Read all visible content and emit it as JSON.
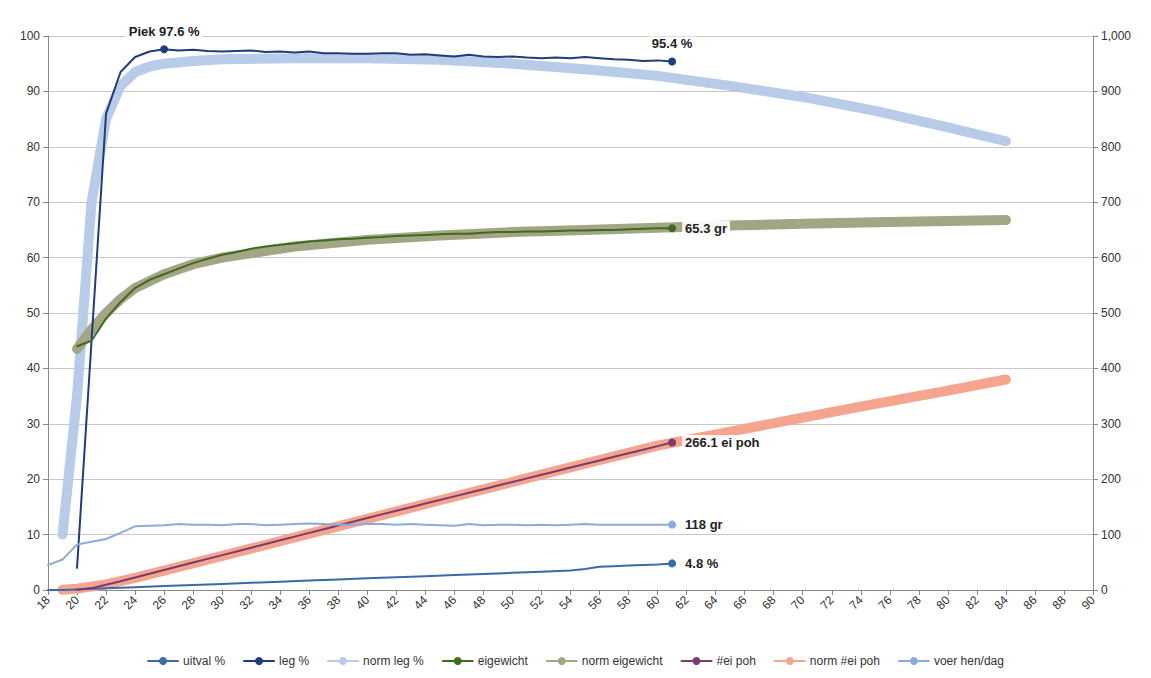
{
  "chart_data": {
    "type": "line",
    "xlim": [
      18,
      90
    ],
    "xticks": [
      18,
      20,
      22,
      24,
      26,
      28,
      30,
      32,
      34,
      36,
      38,
      40,
      42,
      44,
      46,
      48,
      50,
      52,
      54,
      56,
      58,
      60,
      62,
      64,
      66,
      68,
      70,
      72,
      74,
      76,
      78,
      80,
      82,
      84,
      86,
      88,
      90
    ],
    "ylim": [
      0,
      100
    ],
    "yticks": [
      0,
      10,
      20,
      30,
      40,
      50,
      60,
      70,
      80,
      90,
      100
    ],
    "y2lim": [
      0,
      1000
    ],
    "y2ticks": [
      0,
      100,
      200,
      300,
      400,
      500,
      600,
      700,
      800,
      900,
      1000
    ],
    "grid": true,
    "legend": "bottom",
    "series": [
      {
        "name": "uitval %",
        "color": "#3b6aa8",
        "line_style": "solid",
        "x": [
          18,
          19,
          20,
          22,
          24,
          26,
          28,
          30,
          32,
          34,
          36,
          38,
          40,
          42,
          44,
          46,
          48,
          50,
          52,
          54,
          55,
          56,
          57,
          58,
          59,
          60,
          61
        ],
        "values": [
          0,
          0,
          0.1,
          0.3,
          0.5,
          0.7,
          0.9,
          1.1,
          1.3,
          1.5,
          1.7,
          1.9,
          2.1,
          2.3,
          2.5,
          2.7,
          2.9,
          3.1,
          3.3,
          3.5,
          3.8,
          4.2,
          4.3,
          4.4,
          4.5,
          4.6,
          4.8
        ]
      },
      {
        "name": "leg %",
        "color": "#1f3d7a",
        "line_style": "solid",
        "x": [
          20,
          21,
          22,
          23,
          24,
          25,
          26,
          27,
          28,
          29,
          30,
          31,
          32,
          33,
          34,
          35,
          36,
          37,
          38,
          39,
          40,
          41,
          42,
          43,
          44,
          45,
          46,
          47,
          48,
          49,
          50,
          51,
          52,
          53,
          54,
          55,
          56,
          57,
          58,
          59,
          60,
          61
        ],
        "values": [
          4,
          45,
          86,
          93.5,
          96.2,
          97.2,
          97.6,
          97.4,
          97.5,
          97.3,
          97.2,
          97.3,
          97.4,
          97.1,
          97.2,
          97.0,
          97.2,
          96.9,
          96.9,
          96.8,
          96.8,
          96.9,
          96.9,
          96.6,
          96.7,
          96.5,
          96.3,
          96.6,
          96.3,
          96.2,
          96.3,
          96.1,
          96.0,
          96.1,
          96.0,
          96.2,
          96.0,
          95.8,
          95.7,
          95.5,
          95.6,
          95.4
        ]
      },
      {
        "name": "norm leg %",
        "color": "#b8cbe8",
        "line_style": "thick",
        "x": [
          19,
          20,
          21,
          22,
          23,
          24,
          25,
          26,
          28,
          30,
          35,
          40,
          45,
          50,
          55,
          60,
          65,
          70,
          75,
          80,
          84
        ],
        "values": [
          10,
          35,
          70,
          85,
          91,
          93.5,
          94.5,
          95,
          95.5,
          95.8,
          96,
          96,
          95.7,
          95,
          94,
          92.8,
          91,
          89,
          86.5,
          83.5,
          81
        ]
      },
      {
        "name": "eigewicht",
        "color": "#3d6b1f",
        "line_style": "solid",
        "x": [
          20,
          21,
          22,
          23,
          24,
          25,
          26,
          27,
          28,
          29,
          30,
          31,
          32,
          33,
          34,
          35,
          36,
          37,
          38,
          39,
          40,
          41,
          42,
          43,
          44,
          45,
          46,
          47,
          48,
          49,
          50,
          51,
          52,
          53,
          54,
          55,
          56,
          57,
          58,
          59,
          60,
          61
        ],
        "values": [
          44,
          45,
          49,
          52,
          54.5,
          56,
          57,
          58,
          59,
          59.8,
          60.5,
          61,
          61.6,
          62,
          62.3,
          62.6,
          62.9,
          63.1,
          63.3,
          63.4,
          63.6,
          63.7,
          63.9,
          64,
          64.1,
          64.2,
          64.3,
          64.3,
          64.5,
          64.6,
          64.6,
          64.7,
          64.7,
          64.8,
          64.9,
          64.9,
          65,
          65,
          65.1,
          65.2,
          65.3,
          65.3
        ]
      },
      {
        "name": "norm eigewicht",
        "color": "#a3a585",
        "line_style": "thick",
        "x": [
          20,
          21,
          22,
          23,
          24,
          26,
          28,
          30,
          35,
          40,
          45,
          50,
          55,
          60,
          65,
          70,
          75,
          80,
          84
        ],
        "values": [
          43.5,
          47,
          50,
          52.5,
          54.5,
          57,
          58.8,
          60,
          62,
          63.2,
          64,
          64.6,
          65,
          65.4,
          65.8,
          66.1,
          66.4,
          66.6,
          66.8
        ]
      },
      {
        "name": "#ei poh",
        "color": "#7a3b6e",
        "line_style": "solid",
        "axis": "y2",
        "x": [
          20,
          21,
          22,
          23,
          24,
          25,
          26,
          27,
          28,
          29,
          30,
          31,
          32,
          33,
          34,
          35,
          36,
          37,
          38,
          39,
          40,
          41,
          42,
          43,
          44,
          45,
          46,
          47,
          48,
          49,
          50,
          51,
          52,
          53,
          54,
          55,
          56,
          57,
          58,
          59,
          60,
          61
        ],
        "values": [
          0.3,
          3.4,
          9.3,
          15.8,
          22.5,
          29.3,
          36.1,
          42.8,
          49.5,
          56.2,
          62.9,
          69.6,
          76.3,
          83.0,
          89.7,
          96.4,
          103.1,
          109.8,
          116.5,
          123.2,
          129.9,
          136.5,
          143.0,
          149.5,
          156.0,
          162.5,
          169.0,
          175.5,
          182.0,
          188.5,
          195.0,
          201.5,
          208.0,
          214.5,
          221.0,
          227.5,
          233.9,
          240.4,
          246.8,
          253.3,
          259.7,
          266.1
        ]
      },
      {
        "name": "norm #ei poh",
        "color": "#f5a58f",
        "line_style": "thick",
        "axis": "y2",
        "x": [
          19,
          20,
          22,
          24,
          26,
          30,
          35,
          40,
          45,
          50,
          55,
          60,
          65,
          70,
          75,
          80,
          84
        ],
        "values": [
          0.5,
          2.5,
          10,
          22,
          35,
          61.5,
          95,
          128.5,
          162,
          195,
          228,
          260.5,
          286,
          311,
          336,
          360,
          380
        ]
      },
      {
        "name": "voer hen/dag",
        "color": "#8eaadb",
        "line_style": "solid",
        "axis": "y2",
        "x": [
          18,
          19,
          20,
          21,
          22,
          23,
          24,
          25,
          26,
          27,
          28,
          29,
          30,
          31,
          32,
          33,
          34,
          35,
          36,
          37,
          38,
          39,
          40,
          41,
          42,
          43,
          44,
          45,
          46,
          47,
          48,
          49,
          50,
          51,
          52,
          53,
          54,
          55,
          56,
          57,
          58,
          59,
          60,
          61
        ],
        "values": [
          45,
          55,
          82,
          87,
          92,
          103,
          115,
          116,
          117,
          119,
          118,
          118,
          117,
          119,
          119,
          117,
          118,
          119,
          120,
          119,
          118,
          118,
          119,
          119,
          118,
          119,
          118,
          117,
          116,
          119,
          117,
          118,
          118,
          117,
          118,
          117,
          118,
          119,
          118,
          118,
          118,
          118,
          118,
          118
        ]
      }
    ],
    "annotations": [
      {
        "series": "leg %",
        "x": 26,
        "text": "Piek 97.6 %"
      },
      {
        "series": "leg %",
        "x": 61,
        "text": "95.4 %"
      },
      {
        "series": "eigewicht",
        "x": 61,
        "text": "65.3 gr"
      },
      {
        "series": "#ei poh",
        "x": 61,
        "text": "266.1 ei poh"
      },
      {
        "series": "voer hen/dag",
        "x": 61,
        "text": "118 gr"
      },
      {
        "series": "uitval %",
        "x": 61,
        "text": "4.8 %"
      }
    ]
  }
}
